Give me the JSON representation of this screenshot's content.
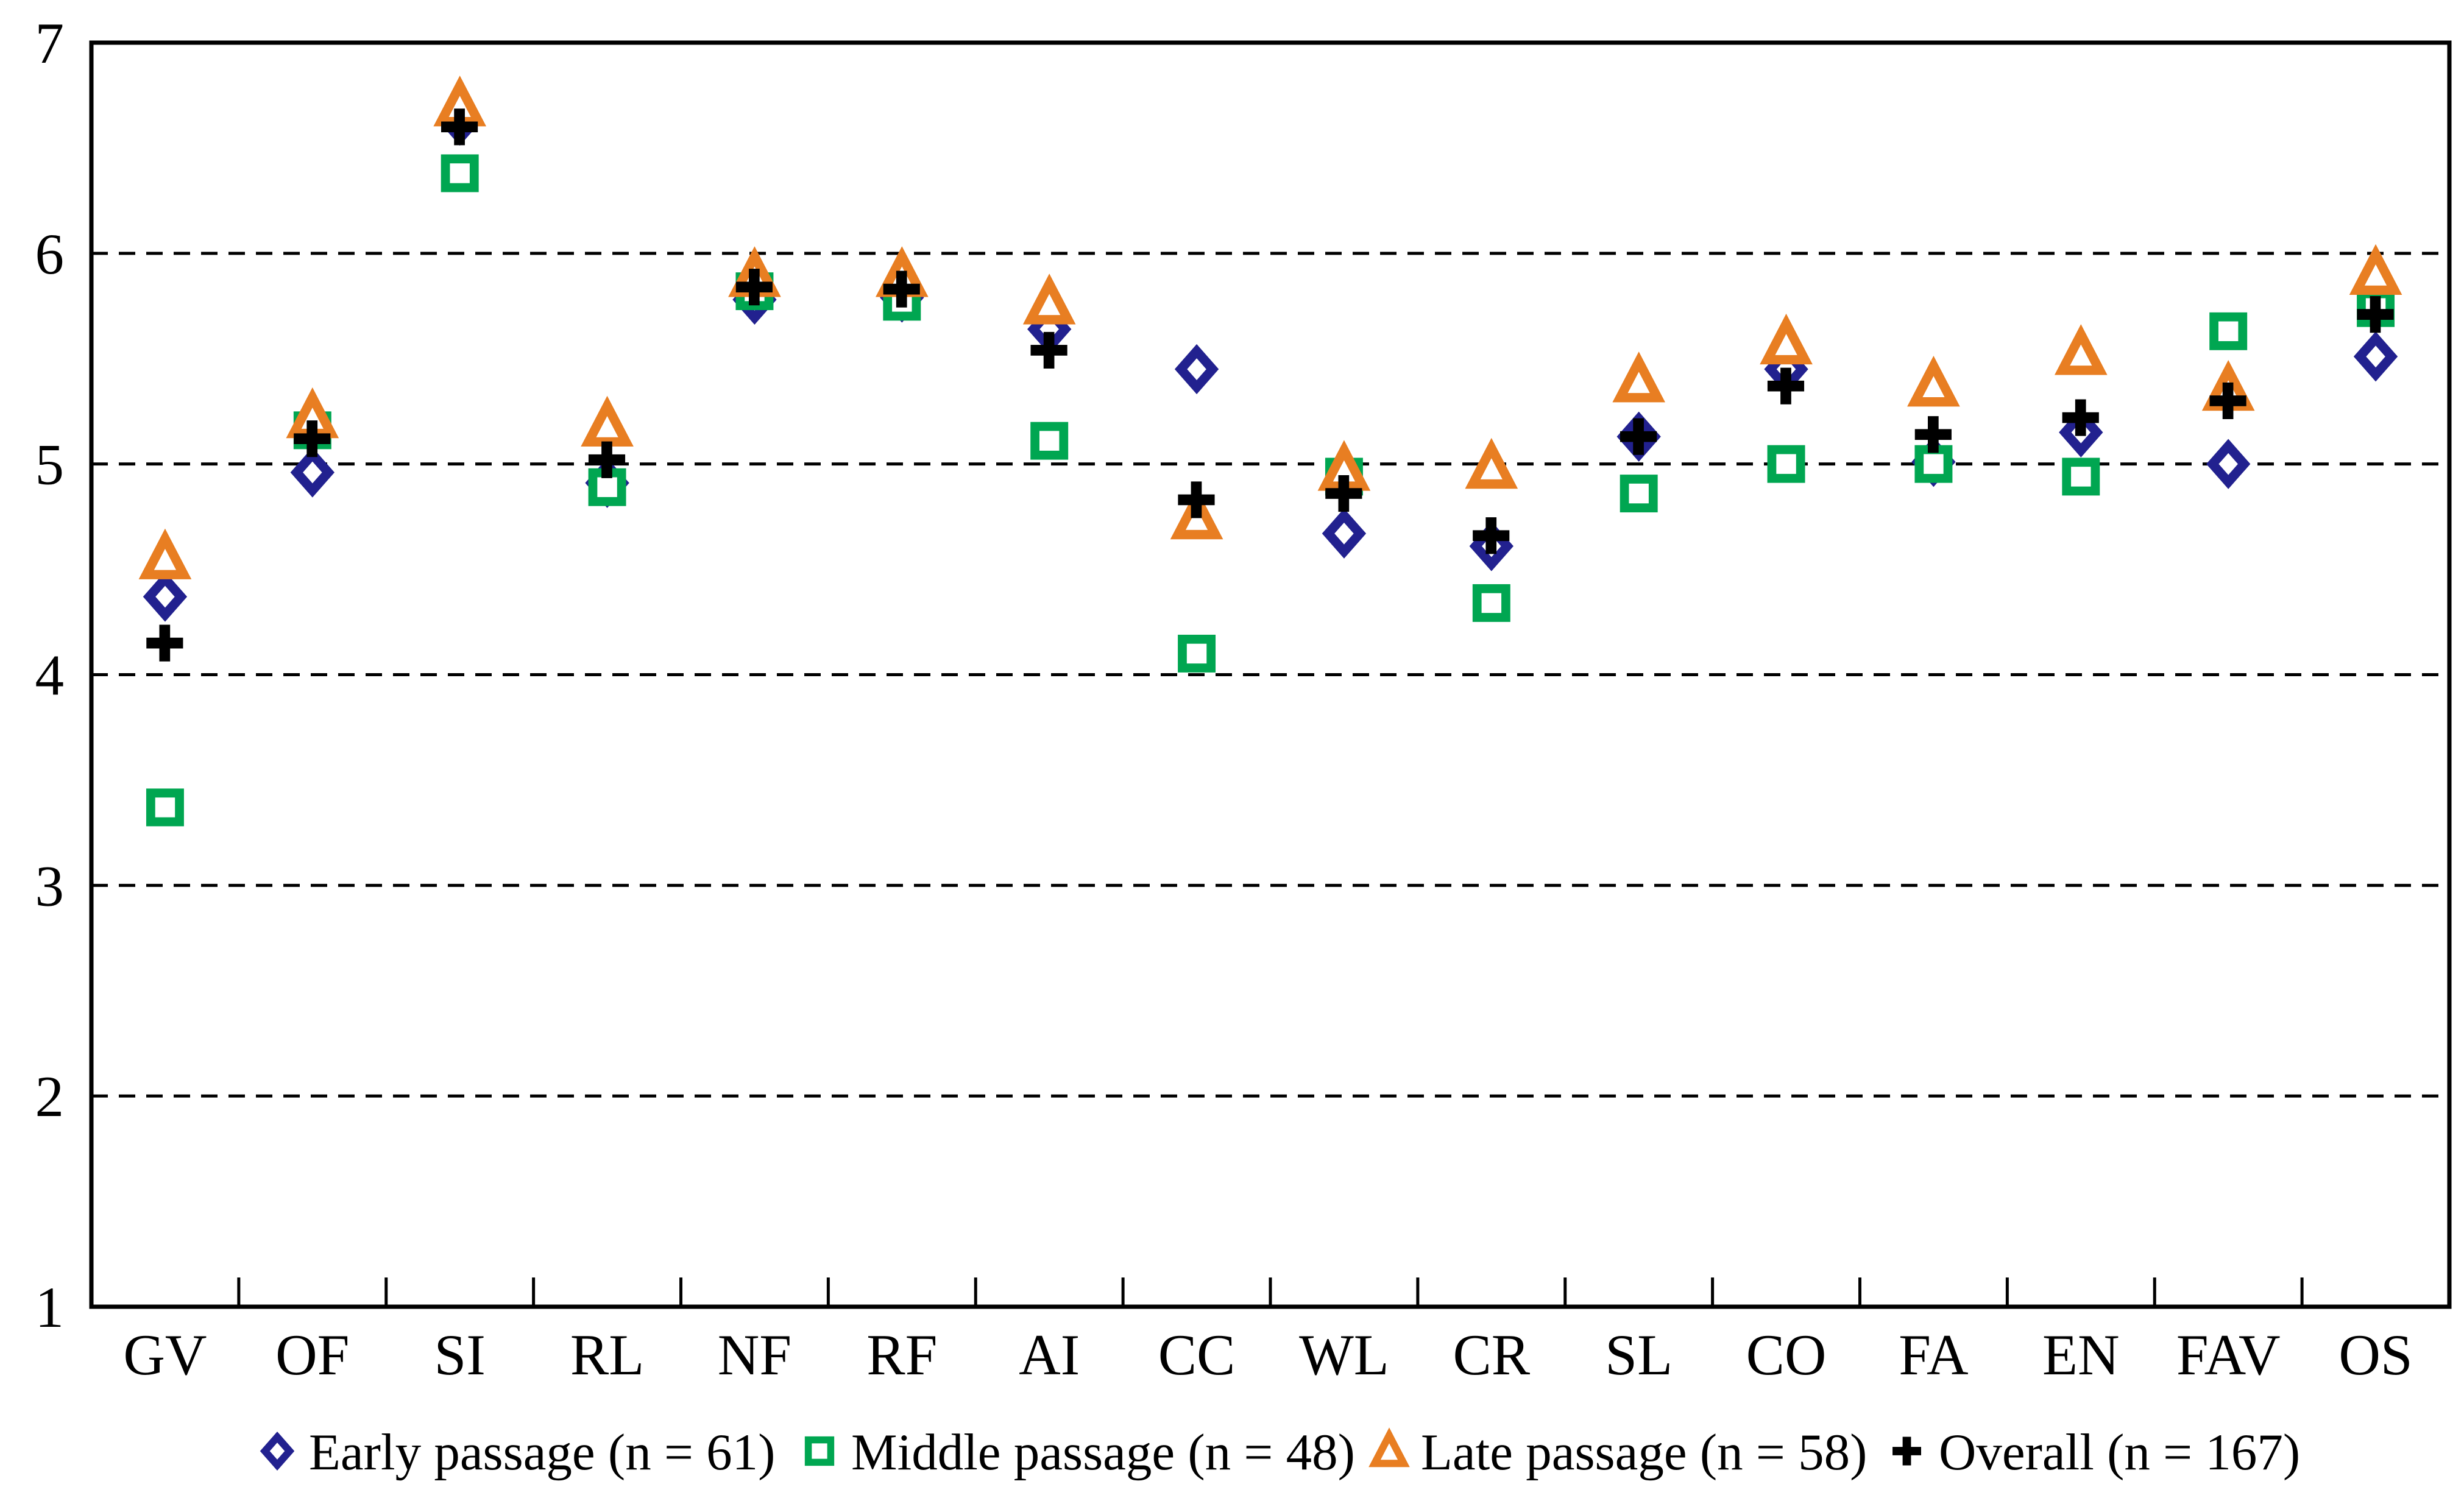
{
  "chart_data": {
    "type": "scatter",
    "title": "",
    "xlabel": "",
    "ylabel": "",
    "ylim": [
      1,
      7
    ],
    "y_ticks": [
      1,
      2,
      3,
      4,
      5,
      6,
      7
    ],
    "gridlines": {
      "horizontal_dashed_at": [
        2,
        3,
        4,
        5,
        6
      ],
      "style": "dashed"
    },
    "legend_position": "bottom",
    "categories": [
      "GV",
      "OF",
      "SI",
      "RL",
      "NF",
      "RF",
      "AI",
      "CC",
      "WL",
      "CR",
      "SL",
      "CO",
      "FA",
      "EN",
      "FAV",
      "OS"
    ],
    "series": [
      {
        "name": "Early passage (n = 61)",
        "marker": "diamond",
        "color": "#22218F",
        "values": [
          4.37,
          4.96,
          6.63,
          4.91,
          5.78,
          5.79,
          5.64,
          5.45,
          4.67,
          4.61,
          5.13,
          5.45,
          5.01,
          5.15,
          5.0,
          5.51
        ]
      },
      {
        "name": "Middle passage (n = 48)",
        "marker": "square",
        "color": "#00A651",
        "values": [
          3.37,
          5.16,
          6.38,
          4.89,
          5.82,
          5.77,
          5.11,
          4.1,
          4.94,
          4.34,
          4.86,
          5.0,
          5.0,
          4.94,
          5.63,
          5.74
        ]
      },
      {
        "name": "Late passage (n = 58)",
        "marker": "triangle",
        "color": "#E87E22",
        "values": [
          4.55,
          5.22,
          6.7,
          5.18,
          5.89,
          5.89,
          5.76,
          4.74,
          4.97,
          4.98,
          5.39,
          5.57,
          5.37,
          5.52,
          5.35,
          5.9
        ]
      },
      {
        "name": "Overall (n = 167)",
        "marker": "plus",
        "color": "#000000",
        "values": [
          4.15,
          5.12,
          6.6,
          5.02,
          5.84,
          5.83,
          5.54,
          4.83,
          4.86,
          4.66,
          5.13,
          5.37,
          5.14,
          5.22,
          5.3,
          5.71
        ]
      }
    ]
  },
  "colors": {
    "background": "#ffffff",
    "axis": "#000000",
    "early_blue": "#22218F",
    "middle_green": "#00A651",
    "late_orange": "#E87E22",
    "overall_black": "#000000"
  }
}
